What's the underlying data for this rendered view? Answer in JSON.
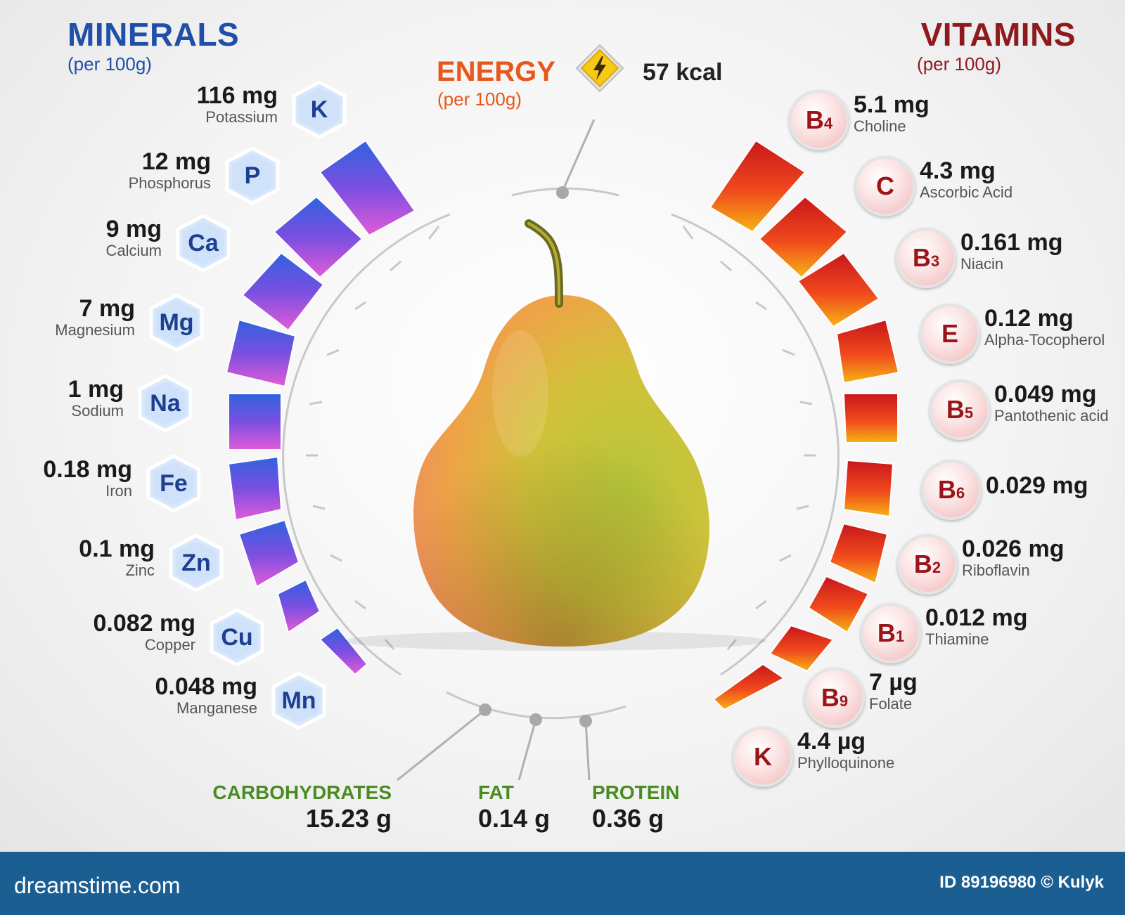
{
  "minerals": {
    "title": "MINERALS",
    "subtitle": "(per 100g)",
    "items": [
      {
        "symbol": "K",
        "amount": "116 mg",
        "name": "Potassium"
      },
      {
        "symbol": "P",
        "amount": "12 mg",
        "name": "Phosphorus"
      },
      {
        "symbol": "Ca",
        "amount": "9 mg",
        "name": "Calcium"
      },
      {
        "symbol": "Mg",
        "amount": "7 mg",
        "name": "Magnesium"
      },
      {
        "symbol": "Na",
        "amount": "1 mg",
        "name": "Sodium"
      },
      {
        "symbol": "Fe",
        "amount": "0.18 mg",
        "name": "Iron"
      },
      {
        "symbol": "Zn",
        "amount": "0.1 mg",
        "name": "Zinc"
      },
      {
        "symbol": "Cu",
        "amount": "0.082 mg",
        "name": "Copper"
      },
      {
        "symbol": "Mn",
        "amount": "0.048 mg",
        "name": "Manganese"
      }
    ]
  },
  "vitamins": {
    "title": "VITAMINS",
    "subtitle": "(per 100g)",
    "items": [
      {
        "letter": "B",
        "sub": "4",
        "amount": "5.1 mg",
        "name": "Choline"
      },
      {
        "letter": "C",
        "sub": "",
        "amount": "4.3 mg",
        "name": "Ascorbic Acid"
      },
      {
        "letter": "B",
        "sub": "3",
        "amount": "0.161 mg",
        "name": "Niacin"
      },
      {
        "letter": "E",
        "sub": "",
        "amount": "0.12 mg",
        "name": "Alpha-Tocopherol"
      },
      {
        "letter": "B",
        "sub": "5",
        "amount": "0.049 mg",
        "name": "Pantothenic acid"
      },
      {
        "letter": "B",
        "sub": "6",
        "amount": "0.029 mg",
        "name": ""
      },
      {
        "letter": "B",
        "sub": "2",
        "amount": "0.026 mg",
        "name": "Riboflavin"
      },
      {
        "letter": "B",
        "sub": "1",
        "amount": "0.012 mg",
        "name": "Thiamine"
      },
      {
        "letter": "B",
        "sub": "9",
        "amount": "7 µg",
        "name": "Folate"
      },
      {
        "letter": "K",
        "sub": "",
        "amount": "4.4 µg",
        "name": "Phylloquinone"
      }
    ]
  },
  "energy": {
    "title": "ENERGY",
    "subtitle": "(per 100g)",
    "value": "57 kcal",
    "icon": "lightning-icon"
  },
  "macros": {
    "carbohydrates": {
      "label": "CARBOHYDRATES",
      "value": "15.23 g"
    },
    "fat": {
      "label": "FAT",
      "value": "0.14 g"
    },
    "protein": {
      "label": "PROTEIN",
      "value": "0.36 g"
    }
  },
  "colors": {
    "minerals": "#1f4fa8",
    "vitamins": "#8e1a1e",
    "energy": "#e8571b",
    "macros": "#4a8c22",
    "footer": "#1b5e92"
  },
  "footer": {
    "logo": "dreamstime.com",
    "id": "ID 89196980 © Kulyk"
  }
}
